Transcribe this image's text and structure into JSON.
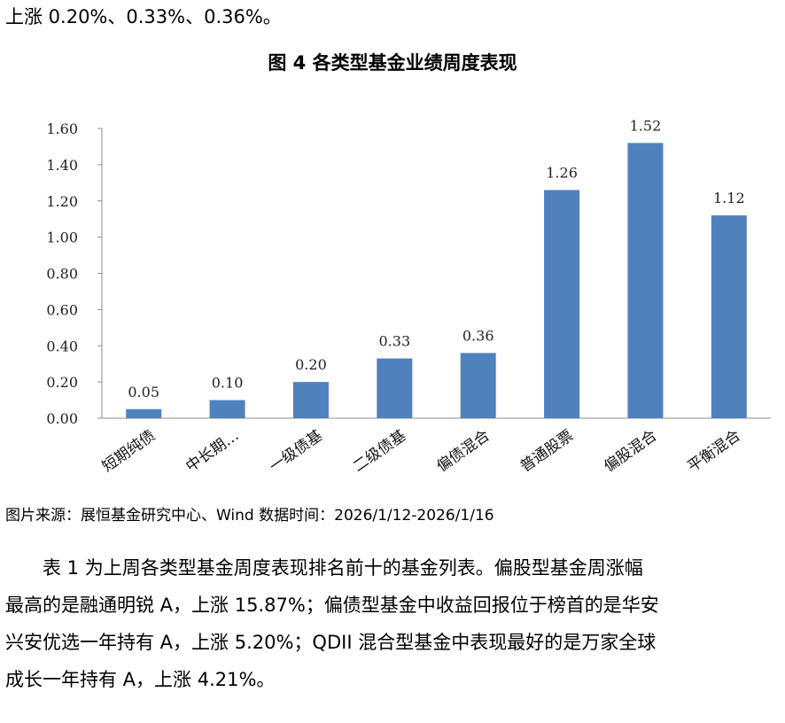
{
  "text_top": "上涨 0.20%、0.33%、0.36%。",
  "figure_title": "图 4 各类型基金业绩周度表现",
  "chart_data": {
    "type": "bar",
    "title": "",
    "xlabel": "",
    "ylabel": "",
    "categories": [
      "短期纯债",
      "中长期…",
      "一级债基",
      "二级债基",
      "偏债混合",
      "普通股票",
      "偏股混合",
      "平衡混合"
    ],
    "values": [
      0.05,
      0.1,
      0.2,
      0.33,
      0.36,
      1.26,
      1.52,
      1.12
    ],
    "data_labels": [
      "0.05",
      "0.10",
      "0.20",
      "0.33",
      "0.36",
      "1.26",
      "1.52",
      "1.12"
    ],
    "ylim": [
      0,
      1.6
    ],
    "yticks": [
      "0.00",
      "0.20",
      "0.40",
      "0.60",
      "0.80",
      "1.00",
      "1.20",
      "1.40",
      "1.60"
    ],
    "grid": false,
    "legend": "none",
    "bar_color": "#4f81bd"
  },
  "source_text": "图片来源：展恒基金研究中心、Wind  数据时间：2026/1/12-2026/1/16",
  "paragraph_lines": [
    "表 1 为上周各类型基金周度表现排名前十的基金列表。偏股型基金周涨幅",
    "最高的是融通明锐 A，上涨 15.87%；偏债型基金中收益回报位于榜首的是华安",
    "兴安优选一年持有 A，上涨 5.20%；QDII 混合型基金中表现最好的是万家全球",
    "成长一年持有 A，上涨 4.21%。"
  ]
}
